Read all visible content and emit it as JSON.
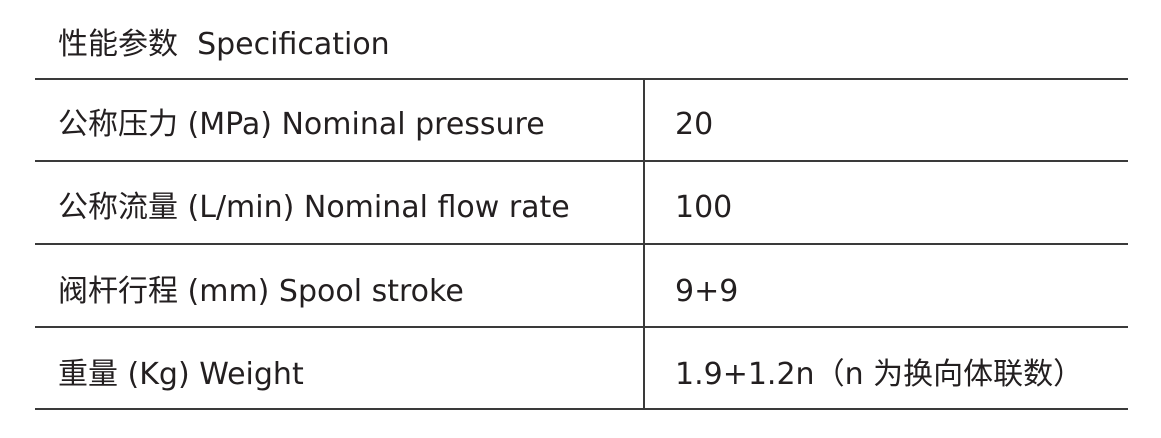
{
  "header": {
    "title": "性能参数  Specification"
  },
  "table": {
    "rows": [
      [
        "公称压力 (MPa) Nominal pressure",
        "20"
      ],
      [
        "公称流量 (L/min) Nominal flow rate",
        "100"
      ],
      [
        "阀杆行程 (mm) Spool stroke",
        "9+9"
      ],
      [
        "重量 (Kg) Weight",
        "1.9+1.2n（n 为换向体联数）"
      ]
    ]
  }
}
